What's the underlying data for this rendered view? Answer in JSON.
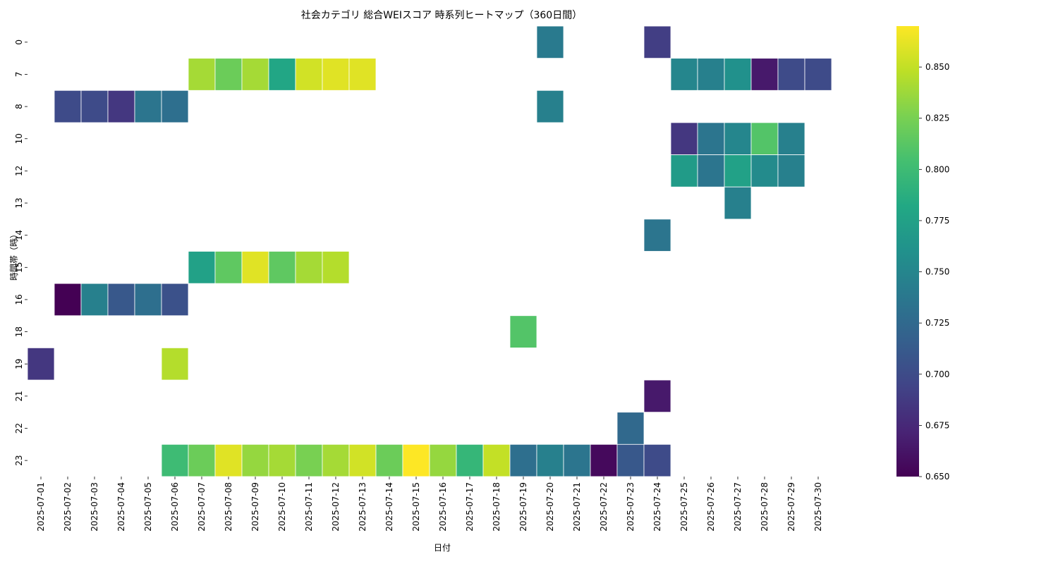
{
  "chart_data": {
    "type": "heatmap",
    "title": "社会カテゴリ 総合WEIスコア 時系列ヒートマップ（360日間）",
    "xlabel": "日付",
    "ylabel": "時間帯（時）",
    "colormap": "viridis",
    "vmin": 0.65,
    "vmax": 0.87,
    "colorbar_ticks": [
      "0.650",
      "0.675",
      "0.700",
      "0.725",
      "0.750",
      "0.775",
      "0.800",
      "0.825",
      "0.850"
    ],
    "x": [
      "2025-07-01",
      "2025-07-02",
      "2025-07-03",
      "2025-07-04",
      "2025-07-05",
      "2025-07-06",
      "2025-07-07",
      "2025-07-08",
      "2025-07-09",
      "2025-07-10",
      "2025-07-11",
      "2025-07-12",
      "2025-07-13",
      "2025-07-14",
      "2025-07-15",
      "2025-07-16",
      "2025-07-17",
      "2025-07-18",
      "2025-07-19",
      "2025-07-20",
      "2025-07-21",
      "2025-07-22",
      "2025-07-23",
      "2025-07-24",
      "2025-07-25",
      "2025-07-26",
      "2025-07-27",
      "2025-07-28",
      "2025-07-29",
      "2025-07-30"
    ],
    "y": [
      "0",
      "7",
      "8",
      "10",
      "12",
      "13",
      "14",
      "15",
      "16",
      "18",
      "19",
      "21",
      "22",
      "23"
    ],
    "values": [
      [
        null,
        null,
        null,
        null,
        null,
        null,
        null,
        null,
        null,
        null,
        null,
        null,
        null,
        null,
        null,
        null,
        null,
        null,
        null,
        0.74,
        null,
        null,
        null,
        0.69,
        null,
        null,
        null,
        null,
        null,
        null
      ],
      [
        null,
        null,
        null,
        null,
        null,
        null,
        0.84,
        0.82,
        0.84,
        0.78,
        0.855,
        0.86,
        0.86,
        null,
        null,
        null,
        null,
        null,
        null,
        null,
        null,
        null,
        null,
        null,
        0.75,
        0.745,
        0.76,
        0.665,
        0.7,
        0.7
      ],
      [
        null,
        0.7,
        0.7,
        0.685,
        0.735,
        0.73,
        null,
        null,
        null,
        null,
        null,
        null,
        null,
        null,
        null,
        null,
        null,
        null,
        null,
        0.745,
        null,
        null,
        null,
        null,
        null,
        null,
        null,
        null,
        null,
        null
      ],
      [
        null,
        null,
        null,
        null,
        null,
        null,
        null,
        null,
        null,
        null,
        null,
        null,
        null,
        null,
        null,
        null,
        null,
        null,
        null,
        null,
        null,
        null,
        null,
        null,
        0.685,
        0.735,
        0.75,
        0.81,
        0.745,
        null
      ],
      [
        null,
        null,
        null,
        null,
        null,
        null,
        null,
        null,
        null,
        null,
        null,
        null,
        null,
        null,
        null,
        null,
        null,
        null,
        null,
        null,
        null,
        null,
        null,
        null,
        0.77,
        0.735,
        0.775,
        0.755,
        0.745,
        null
      ],
      [
        null,
        null,
        null,
        null,
        null,
        null,
        null,
        null,
        null,
        null,
        null,
        null,
        null,
        null,
        null,
        null,
        null,
        null,
        null,
        null,
        null,
        null,
        null,
        null,
        null,
        null,
        0.745,
        null,
        null,
        null
      ],
      [
        null,
        null,
        null,
        null,
        null,
        null,
        null,
        null,
        null,
        null,
        null,
        null,
        null,
        null,
        null,
        null,
        null,
        null,
        null,
        null,
        null,
        null,
        null,
        0.735,
        null,
        null,
        null,
        null,
        null,
        null
      ],
      [
        null,
        null,
        null,
        null,
        null,
        null,
        0.775,
        0.815,
        0.86,
        0.815,
        0.84,
        0.845,
        null,
        null,
        null,
        null,
        null,
        null,
        null,
        null,
        null,
        null,
        null,
        null,
        null,
        null,
        null,
        null,
        null,
        null
      ],
      [
        null,
        0.65,
        0.745,
        0.71,
        0.73,
        0.705,
        null,
        null,
        null,
        null,
        null,
        null,
        null,
        null,
        null,
        null,
        null,
        null,
        null,
        null,
        null,
        null,
        null,
        null,
        null,
        null,
        null,
        null,
        null,
        null
      ],
      [
        null,
        null,
        null,
        null,
        null,
        null,
        null,
        null,
        null,
        null,
        null,
        null,
        null,
        null,
        null,
        null,
        null,
        null,
        0.81,
        null,
        null,
        null,
        null,
        null,
        null,
        null,
        null,
        null,
        null,
        null
      ],
      [
        0.685,
        null,
        null,
        null,
        null,
        0.845,
        null,
        null,
        null,
        null,
        null,
        null,
        null,
        null,
        null,
        null,
        null,
        null,
        null,
        null,
        null,
        null,
        null,
        null,
        null,
        null,
        null,
        null,
        null,
        null
      ],
      [
        null,
        null,
        null,
        null,
        null,
        null,
        null,
        null,
        null,
        null,
        null,
        null,
        null,
        null,
        null,
        null,
        null,
        null,
        null,
        null,
        null,
        null,
        null,
        0.665,
        null,
        null,
        null,
        null,
        null,
        null
      ],
      [
        null,
        null,
        null,
        null,
        null,
        null,
        null,
        null,
        null,
        null,
        null,
        null,
        null,
        null,
        null,
        null,
        null,
        null,
        null,
        null,
        null,
        null,
        0.725,
        null,
        null,
        null,
        null,
        null,
        null,
        null
      ],
      [
        null,
        null,
        null,
        null,
        null,
        0.8,
        0.82,
        0.86,
        0.835,
        0.84,
        0.825,
        0.84,
        0.855,
        0.82,
        0.87,
        0.835,
        0.795,
        0.85,
        0.73,
        0.745,
        0.735,
        0.655,
        0.71,
        0.7,
        null,
        null,
        null,
        null,
        null,
        null
      ]
    ]
  }
}
